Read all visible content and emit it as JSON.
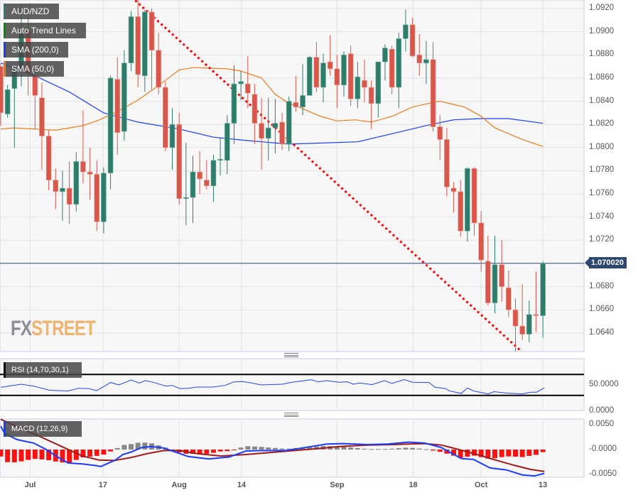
{
  "legend": {
    "symbol": "AUD/NZD",
    "trend": "Auto Trend Lines",
    "sma200": "SMA (200,0)",
    "sma50": "SMA (50,0)",
    "rsi": "RSI (14,70,30,1)",
    "macd": "MACD (12,26,9)"
  },
  "watermark": {
    "part1": "FX",
    "part2": "STREET"
  },
  "current_price": "1.070020",
  "colors": {
    "up": "#2e7d6b",
    "down": "#d9574a",
    "sma200": "#1a3cff",
    "sma50": "#f07a1a",
    "trend": "#ff0000",
    "rsi": "#2244ee",
    "macd": "#1a3cff",
    "signal": "#a01818",
    "hist_neg": "#ff1010",
    "hist_pos": "#888888",
    "price_tag": "#2c4770"
  },
  "chart_data": [
    {
      "type": "candlestick",
      "ylim": [
        1.0624,
        1.0928
      ],
      "yticks": [
        "1.0920",
        "1.0900",
        "1.0880",
        "1.0860",
        "1.0840",
        "1.0820",
        "1.0800",
        "1.0780",
        "1.0760",
        "1.0740",
        "1.0720",
        "1.0680",
        "1.0660",
        "1.0640"
      ],
      "xticks": [
        {
          "label": "Jul",
          "i": 4.3
        },
        {
          "label": "17",
          "i": 14.9
        },
        {
          "label": "Aug",
          "i": 26
        },
        {
          "label": "14",
          "i": 35.1
        },
        {
          "label": "Sep",
          "i": 49
        },
        {
          "label": "18",
          "i": 60.1
        },
        {
          "label": "Oct",
          "i": 70
        },
        {
          "label": "13",
          "i": 79
        }
      ],
      "ohlc": [
        [
          1.087,
          1.0872,
          1.0819,
          1.083
        ],
        [
          1.0829,
          1.0854,
          1.0826,
          1.085
        ],
        [
          1.0851,
          1.0874,
          1.08,
          1.0866
        ],
        [
          1.0866,
          1.0924,
          1.0853,
          1.0899
        ],
        [
          1.0901,
          1.0915,
          1.0845,
          1.0864
        ],
        [
          1.0862,
          1.0866,
          1.0816,
          1.0845
        ],
        [
          1.0843,
          1.0856,
          1.0781,
          1.081
        ],
        [
          1.081,
          1.0815,
          1.0763,
          1.0772
        ],
        [
          1.0772,
          1.0782,
          1.0747,
          1.0762
        ],
        [
          1.0762,
          1.078,
          1.0737,
          1.0765
        ],
        [
          1.0765,
          1.0788,
          1.0734,
          1.0751
        ],
        [
          1.0751,
          1.0796,
          1.0745,
          1.0788
        ],
        [
          1.0788,
          1.0832,
          1.0769,
          1.0779
        ],
        [
          1.0779,
          1.08,
          1.0755,
          1.0777
        ],
        [
          1.0777,
          1.0789,
          1.0728,
          1.0736
        ],
        [
          1.0736,
          1.0783,
          1.0726,
          1.0778
        ],
        [
          1.0778,
          1.0862,
          1.0764,
          1.086
        ],
        [
          1.0859,
          1.0878,
          1.0794,
          1.0813
        ],
        [
          1.0814,
          1.0884,
          1.0806,
          1.0873
        ],
        [
          1.0873,
          1.0918,
          1.0866,
          1.0913
        ],
        [
          1.0913,
          1.0928,
          1.0852,
          1.0863
        ],
        [
          1.0862,
          1.0919,
          1.0848,
          1.0917
        ],
        [
          1.0917,
          1.092,
          1.085,
          1.0884
        ],
        [
          1.0884,
          1.0899,
          1.0846,
          1.0852
        ],
        [
          1.0852,
          1.0857,
          1.0797,
          1.08
        ],
        [
          1.08,
          1.0834,
          1.0781,
          1.082
        ],
        [
          1.082,
          1.083,
          1.0751,
          1.0756
        ],
        [
          1.0756,
          1.0804,
          1.0733,
          1.0757
        ],
        [
          1.0757,
          1.0793,
          1.0735,
          1.0779
        ],
        [
          1.0779,
          1.0797,
          1.076,
          1.0773
        ],
        [
          1.0772,
          1.0789,
          1.0764,
          1.0767
        ],
        [
          1.0767,
          1.0794,
          1.0753,
          1.0789
        ],
        [
          1.0789,
          1.0809,
          1.0776,
          1.079
        ],
        [
          1.0789,
          1.0828,
          1.0777,
          1.0821
        ],
        [
          1.0821,
          1.0871,
          1.0803,
          1.0855
        ],
        [
          1.0855,
          1.0866,
          1.0841,
          1.0857
        ],
        [
          1.0855,
          1.0879,
          1.0834,
          1.0847
        ],
        [
          1.0846,
          1.0855,
          1.0803,
          1.0821
        ],
        [
          1.0821,
          1.0843,
          1.0781,
          1.0808
        ],
        [
          1.0808,
          1.0843,
          1.0789,
          1.0817
        ],
        [
          1.0817,
          1.0842,
          1.0795,
          1.0821
        ],
        [
          1.0822,
          1.083,
          1.0798,
          1.0803
        ],
        [
          1.0803,
          1.0844,
          1.0797,
          1.084
        ],
        [
          1.0839,
          1.0862,
          1.0831,
          1.0835
        ],
        [
          1.0835,
          1.0872,
          1.0828,
          1.0845
        ],
        [
          1.0845,
          1.0879,
          1.0845,
          1.0878
        ],
        [
          1.0878,
          1.0891,
          1.0848,
          1.0852
        ],
        [
          1.0852,
          1.0881,
          1.0839,
          1.0873
        ],
        [
          1.0874,
          1.0897,
          1.0862,
          1.0868
        ],
        [
          1.0868,
          1.088,
          1.0834,
          1.0854
        ],
        [
          1.0854,
          1.0883,
          1.0844,
          1.088
        ],
        [
          1.0881,
          1.0888,
          1.0836,
          1.0842
        ],
        [
          1.0842,
          1.0874,
          1.0834,
          1.0861
        ],
        [
          1.0858,
          1.0876,
          1.0839,
          1.0852
        ],
        [
          1.0852,
          1.0858,
          1.0816,
          1.0838
        ],
        [
          1.0838,
          1.0874,
          1.0826,
          1.0874
        ],
        [
          1.0874,
          1.0889,
          1.0858,
          1.0886
        ],
        [
          1.0885,
          1.0888,
          1.0846,
          1.0852
        ],
        [
          1.0852,
          1.0899,
          1.0834,
          1.0894
        ],
        [
          1.0894,
          1.0919,
          1.0883,
          1.0906
        ],
        [
          1.0906,
          1.0912,
          1.0878,
          1.0879
        ],
        [
          1.088,
          1.0898,
          1.0862,
          1.0873
        ],
        [
          1.0873,
          1.0892,
          1.0855,
          1.0876
        ],
        [
          1.0876,
          1.0891,
          1.0814,
          1.0818
        ],
        [
          1.0818,
          1.0828,
          1.0789,
          1.0807
        ],
        [
          1.0807,
          1.0817,
          1.0758,
          1.0766
        ],
        [
          1.0765,
          1.077,
          1.0744,
          1.0762
        ],
        [
          1.0762,
          1.0772,
          1.0723,
          1.0728
        ],
        [
          1.0728,
          1.0783,
          1.0719,
          1.0782
        ],
        [
          1.0782,
          1.0783,
          1.0724,
          1.0735
        ],
        [
          1.0735,
          1.0745,
          1.0693,
          1.0703
        ],
        [
          1.0702,
          1.0724,
          1.0664,
          1.0666
        ],
        [
          1.0666,
          1.0724,
          1.0657,
          1.0699
        ],
        [
          1.0699,
          1.072,
          1.0667,
          1.068
        ],
        [
          1.0679,
          1.0694,
          1.0654,
          1.066
        ],
        [
          1.066,
          1.067,
          1.0624,
          1.0646
        ],
        [
          1.0646,
          1.0682,
          1.0634,
          1.0639
        ],
        [
          1.0639,
          1.0668,
          1.0632,
          1.0656
        ],
        [
          1.0656,
          1.0693,
          1.0641,
          1.0655
        ],
        [
          1.0655,
          1.0702,
          1.0636,
          1.07
        ]
      ],
      "sma200": [
        [
          0,
          1.0873
        ],
        [
          5,
          1.0862
        ],
        [
          10,
          1.0848
        ],
        [
          15,
          1.083
        ],
        [
          20,
          1.0822
        ],
        [
          26,
          1.0816
        ],
        [
          31,
          1.0809
        ],
        [
          36,
          1.0806
        ],
        [
          42,
          1.0803
        ],
        [
          52,
          1.0805
        ],
        [
          57,
          1.0812
        ],
        [
          62,
          1.0819
        ],
        [
          66,
          1.0824
        ],
        [
          70,
          1.0825
        ],
        [
          74,
          1.0825
        ],
        [
          79,
          1.0821
        ]
      ],
      "sma50": [
        [
          0,
          1.0816
        ],
        [
          2,
          1.0817
        ],
        [
          5,
          1.0816
        ],
        [
          8,
          1.0815
        ],
        [
          10,
          1.0817
        ],
        [
          12,
          1.0819
        ],
        [
          14,
          1.0823
        ],
        [
          17,
          1.0831
        ],
        [
          20,
          1.0841
        ],
        [
          22.4,
          1.0851
        ],
        [
          24,
          1.0858
        ],
        [
          26,
          1.0867
        ],
        [
          28,
          1.0869
        ],
        [
          33,
          1.0868
        ],
        [
          35,
          1.0866
        ],
        [
          38,
          1.086
        ],
        [
          40,
          1.0846
        ],
        [
          42,
          1.0838
        ],
        [
          43,
          1.0836
        ],
        [
          46.6,
          1.0827
        ],
        [
          49,
          1.0823
        ],
        [
          51.7,
          1.0824
        ],
        [
          54,
          1.0822
        ],
        [
          57,
          1.0827
        ],
        [
          60,
          1.0835
        ],
        [
          63,
          1.0839
        ],
        [
          64,
          1.084
        ],
        [
          67.6,
          1.0835
        ],
        [
          70,
          1.0827
        ],
        [
          72,
          1.0817
        ],
        [
          76,
          1.0807
        ],
        [
          79,
          1.0801
        ]
      ],
      "trendline": [
        [
          19.6,
          1.0927
        ],
        [
          75.7,
          1.0625
        ]
      ]
    },
    {
      "type": "line",
      "name": "RSI",
      "ylim": [
        0,
        100
      ],
      "levels": [
        70,
        30
      ],
      "yticks": [
        "50.0000",
        "0.0000"
      ],
      "points": [
        [
          0,
          45.4
        ],
        [
          3,
          51.4
        ],
        [
          4.8,
          47.7
        ],
        [
          7.1,
          39.9
        ],
        [
          9.8,
          38.5
        ],
        [
          11.3,
          43.6
        ],
        [
          12.8,
          43.1
        ],
        [
          14,
          39
        ],
        [
          16,
          54.6
        ],
        [
          17.2,
          50
        ],
        [
          19,
          59.2
        ],
        [
          20.2,
          53.7
        ],
        [
          21.1,
          58.3
        ],
        [
          22.6,
          53.7
        ],
        [
          24.1,
          47.7
        ],
        [
          25,
          49.1
        ],
        [
          26.1,
          43.1
        ],
        [
          27.3,
          43.6
        ],
        [
          28.5,
          45.9
        ],
        [
          30.9,
          45.9
        ],
        [
          32.7,
          49.1
        ],
        [
          33.9,
          55.5
        ],
        [
          35.1,
          56.4
        ],
        [
          36.2,
          54.6
        ],
        [
          38,
          50
        ],
        [
          41,
          51.4
        ],
        [
          42.2,
          54.6
        ],
        [
          45.2,
          59.7
        ],
        [
          46.3,
          56
        ],
        [
          47.5,
          58.3
        ],
        [
          49.3,
          55.1
        ],
        [
          50.5,
          56
        ],
        [
          51.4,
          51.4
        ],
        [
          52.3,
          53.7
        ],
        [
          54.1,
          50.5
        ],
        [
          55.9,
          58.3
        ],
        [
          57,
          52.8
        ],
        [
          58.8,
          60.1
        ],
        [
          60,
          55.1
        ],
        [
          62.4,
          54.6
        ],
        [
          63.3,
          45.4
        ],
        [
          64.8,
          43.1
        ],
        [
          65.4,
          38.5
        ],
        [
          67.1,
          33.9
        ],
        [
          68,
          44
        ],
        [
          68.9,
          38.5
        ],
        [
          71,
          33
        ],
        [
          71.9,
          37.1
        ],
        [
          73.7,
          34.4
        ],
        [
          76,
          33
        ],
        [
          77.2,
          36.2
        ],
        [
          78.1,
          36.2
        ],
        [
          79.2,
          44.5
        ]
      ]
    },
    {
      "type": "line+bar",
      "name": "MACD",
      "ylim": [
        -0.0053,
        0.0061
      ],
      "yticks": [
        "0.0050",
        "-0.0000",
        "-0.0050"
      ],
      "macd": [
        [
          0,
          0.0047
        ],
        [
          0.6,
          0.0032
        ],
        [
          2.4,
          0.002
        ],
        [
          4.8,
          0.0013
        ],
        [
          6.5,
          0.0001
        ],
        [
          8.3,
          -0.0015
        ],
        [
          9.8,
          -0.0027
        ],
        [
          11.9,
          -0.0029
        ],
        [
          13.7,
          -0.0032
        ],
        [
          14.6,
          -0.0034
        ],
        [
          15.4,
          -0.0029
        ],
        [
          16.6,
          -0.0022
        ],
        [
          17.8,
          -0.001
        ],
        [
          19,
          -0.0005
        ],
        [
          20.5,
          0.0004
        ],
        [
          22,
          0.0006
        ],
        [
          23.8,
          0.0003
        ],
        [
          25,
          -0.0003
        ],
        [
          27.3,
          -0.0014
        ],
        [
          30.3,
          -0.0019
        ],
        [
          33.3,
          -0.0015
        ],
        [
          35.7,
          -0.0003
        ],
        [
          38,
          -0.0002
        ],
        [
          41.6,
          -0.0002
        ],
        [
          45.2,
          0.0006
        ],
        [
          47.5,
          0.0011
        ],
        [
          49.9,
          0.0012
        ],
        [
          53.5,
          0.001
        ],
        [
          56.4,
          0.0011
        ],
        [
          59.4,
          0.0015
        ],
        [
          61.8,
          0.0013
        ],
        [
          64.2,
          0.0004
        ],
        [
          67.1,
          -0.0018
        ],
        [
          68.9,
          -0.002
        ],
        [
          71.3,
          -0.0037
        ],
        [
          73.7,
          -0.0041
        ],
        [
          76,
          -0.0051
        ],
        [
          77.8,
          -0.0053
        ],
        [
          79.2,
          -0.0048
        ]
      ],
      "signal": [
        [
          0,
          0.0061
        ],
        [
          3,
          0.0042
        ],
        [
          5.9,
          0.0025
        ],
        [
          8.9,
          0.0006
        ],
        [
          11.9,
          -0.0013
        ],
        [
          14.3,
          -0.0021
        ],
        [
          16.6,
          -0.0022
        ],
        [
          19,
          -0.0016
        ],
        [
          21.4,
          -0.0008
        ],
        [
          23.8,
          -0.0002
        ],
        [
          26.1,
          -0.0002
        ],
        [
          28.5,
          -0.0008
        ],
        [
          32.1,
          -0.0013
        ],
        [
          35.7,
          -0.001
        ],
        [
          39.2,
          -0.0006
        ],
        [
          42.8,
          -0.0002
        ],
        [
          46.3,
          0.0002
        ],
        [
          49.3,
          0.0006
        ],
        [
          53.5,
          0.0009
        ],
        [
          57,
          0.001
        ],
        [
          59.4,
          0.0011
        ],
        [
          61.8,
          0.0012
        ],
        [
          64.2,
          0.0009
        ],
        [
          66.5,
          0.0001
        ],
        [
          68.9,
          -0.0008
        ],
        [
          71.3,
          -0.0018
        ],
        [
          74.9,
          -0.0032
        ],
        [
          77.2,
          -0.004
        ],
        [
          79.2,
          -0.0044
        ]
      ]
    }
  ]
}
